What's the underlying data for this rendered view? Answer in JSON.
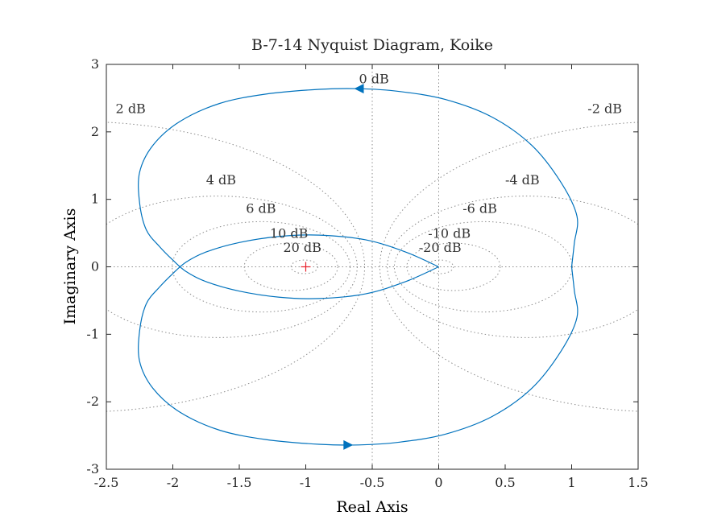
{
  "chart_data": {
    "type": "line",
    "title": "B-7-14 Nyquist Diagram, Koike",
    "xlabel": "Real Axis",
    "ylabel": "Imaginary Axis",
    "xlim": [
      -2.5,
      1.5
    ],
    "ylim": [
      -3,
      3
    ],
    "xticks": [
      -2.5,
      -2,
      -1.5,
      -1,
      -0.5,
      0,
      0.5,
      1,
      1.5
    ],
    "xtick_labels": [
      "-2.5",
      "-2",
      "-1.5",
      "-1",
      "-0.5",
      "0",
      "0.5",
      "1",
      "1.5"
    ],
    "yticks": [
      -3,
      -2,
      -1,
      0,
      1,
      2,
      3
    ],
    "ytick_labels": [
      "-3",
      "-2",
      "-1",
      "0",
      "1",
      "2",
      "3"
    ],
    "grid": "nyquist-mcircles",
    "critical_point": {
      "x": -1,
      "y": 0,
      "color": "#e8202a"
    },
    "series_color": "#0072bd",
    "grid_color": "#8c8c8c",
    "curve_upper": [
      [
        0.0,
        0.0
      ],
      [
        -0.25,
        0.22
      ],
      [
        -0.55,
        0.4
      ],
      [
        -0.9,
        0.47
      ],
      [
        -1.2,
        0.45
      ],
      [
        -1.5,
        0.36
      ],
      [
        -1.75,
        0.22
      ],
      [
        -1.9,
        0.07
      ],
      [
        -2.0,
        -0.1
      ],
      [
        -2.1,
        -0.3
      ],
      [
        -2.2,
        -0.55
      ],
      [
        -2.25,
        -0.95
      ],
      [
        -2.25,
        -1.4
      ],
      [
        -2.15,
        -1.8
      ],
      [
        -1.95,
        -2.15
      ],
      [
        -1.65,
        -2.42
      ],
      [
        -1.3,
        -2.56
      ],
      [
        -0.9,
        -2.63
      ],
      [
        -0.6,
        -2.64
      ],
      [
        -0.3,
        -2.6
      ],
      [
        0.05,
        -2.48
      ],
      [
        0.4,
        -2.22
      ],
      [
        0.7,
        -1.8
      ],
      [
        0.92,
        -1.25
      ],
      [
        1.04,
        -0.75
      ],
      [
        1.02,
        -0.35
      ],
      [
        1.0,
        0.0
      ]
    ],
    "curve_lower": [
      [
        1.0,
        0.0
      ],
      [
        1.02,
        0.35
      ],
      [
        1.04,
        0.75
      ],
      [
        0.92,
        1.25
      ],
      [
        0.7,
        1.8
      ],
      [
        0.4,
        2.22
      ],
      [
        0.05,
        2.48
      ],
      [
        -0.3,
        2.6
      ],
      [
        -0.6,
        2.64
      ],
      [
        -0.9,
        2.63
      ],
      [
        -1.3,
        2.56
      ],
      [
        -1.65,
        2.42
      ],
      [
        -1.95,
        2.15
      ],
      [
        -2.15,
        1.8
      ],
      [
        -2.25,
        1.4
      ],
      [
        -2.25,
        0.95
      ],
      [
        -2.2,
        0.55
      ],
      [
        -2.1,
        0.3
      ],
      [
        -2.0,
        0.1
      ],
      [
        -1.9,
        -0.07
      ],
      [
        -1.75,
        -0.22
      ],
      [
        -1.5,
        -0.36
      ],
      [
        -1.2,
        -0.45
      ],
      [
        -0.9,
        -0.47
      ],
      [
        -0.55,
        -0.4
      ],
      [
        -0.25,
        -0.22
      ],
      [
        0.0,
        0.0
      ]
    ],
    "arrows": [
      {
        "x": -0.6,
        "y": 2.64,
        "direction": "left"
      },
      {
        "x": -0.68,
        "y": -2.64,
        "direction": "right"
      }
    ],
    "m_circles": [
      {
        "db": 0,
        "label": "0 dB",
        "vertical": true,
        "label_x": -0.6,
        "label_y": 2.72
      },
      {
        "db": 2,
        "label": "2 dB",
        "label_x": -2.43,
        "label_y": 2.28
      },
      {
        "db": 4,
        "label": "4 dB",
        "label_x": -1.75,
        "label_y": 1.22
      },
      {
        "db": 6,
        "label": "6 dB",
        "label_x": -1.45,
        "label_y": 0.8
      },
      {
        "db": 10,
        "label": "10 dB",
        "label_x": -1.27,
        "label_y": 0.43
      },
      {
        "db": 20,
        "label": "20 dB",
        "label_x": -1.17,
        "label_y": 0.22
      },
      {
        "db": -2,
        "label": "-2 dB",
        "label_x": 1.12,
        "label_y": 2.28
      },
      {
        "db": -4,
        "label": "-4 dB",
        "label_x": 0.5,
        "label_y": 1.22
      },
      {
        "db": -6,
        "label": "-6 dB",
        "label_x": 0.18,
        "label_y": 0.8
      },
      {
        "db": -10,
        "label": "-10 dB",
        "label_x": -0.08,
        "label_y": 0.43
      },
      {
        "db": -20,
        "label": "-20 dB",
        "label_x": -0.15,
        "label_y": 0.22
      }
    ]
  }
}
